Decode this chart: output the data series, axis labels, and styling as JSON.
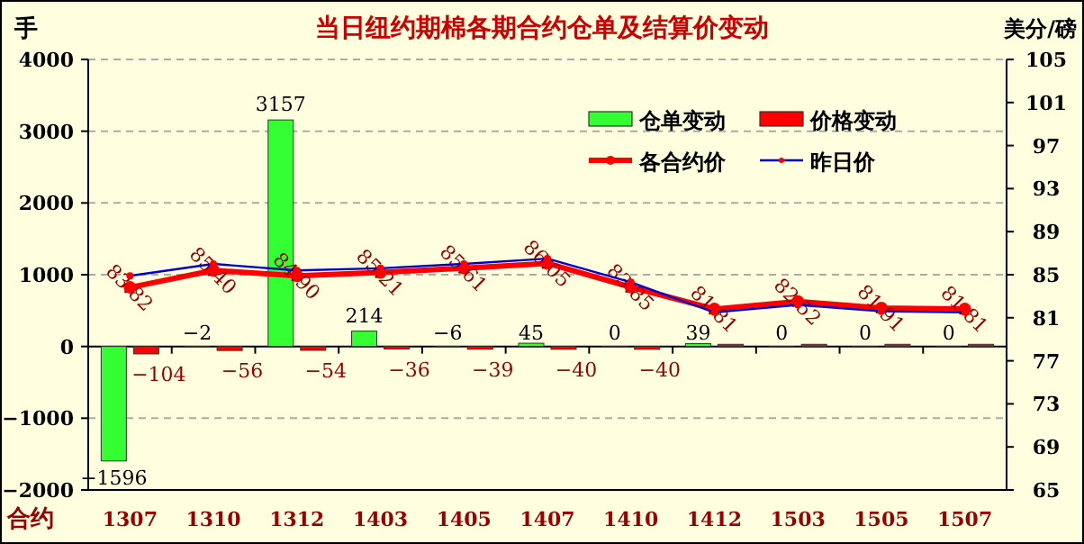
{
  "chart_data": {
    "type": "bar",
    "title": "当日纽约期棉各期合约仓单及结算价变动",
    "xlabel": "合约",
    "ylabel": "手",
    "y2label": "美分/磅",
    "categories": [
      "1307",
      "1310",
      "1312",
      "1403",
      "1405",
      "1407",
      "1410",
      "1412",
      "1503",
      "1505",
      "1507"
    ],
    "series": [
      {
        "name": "仓单变动",
        "color": "#33ff33",
        "values": [
          -1596,
          -2,
          3157,
          214,
          -6,
          45,
          0,
          39,
          0,
          0,
          0
        ],
        "value_labels": [
          "−1596",
          "−2",
          "3157",
          "214",
          "−6",
          "45",
          "0",
          "39",
          "0",
          "0",
          "0"
        ]
      },
      {
        "name": "价格变动",
        "color": "#ff0000",
        "values": [
          -104,
          -56,
          -54,
          -36,
          -39,
          -40,
          -40,
          30,
          30,
          30,
          30
        ],
        "value_labels": [
          "−104",
          "−56",
          "−54",
          "−36",
          "−39",
          "−40",
          "−40",
          null,
          null,
          null,
          null
        ]
      },
      {
        "name": "各合约价",
        "type": "line",
        "axis": "y2",
        "color": "#ff0000",
        "values": [
          83.82,
          85.4,
          84.9,
          85.21,
          85.61,
          86.05,
          83.85,
          81.81,
          82.52,
          81.91,
          81.81
        ],
        "value_labels": [
          "83.82",
          "85.40",
          "84.90",
          "85.21",
          "85.61",
          "86.05",
          "83.85",
          "81.81",
          "82.52",
          "81.91",
          "81.81"
        ]
      },
      {
        "name": "昨日价",
        "type": "line",
        "axis": "y2",
        "color": "#0000cc",
        "values": [
          84.9,
          86.0,
          85.4,
          85.6,
          86.0,
          86.5,
          84.3,
          81.5,
          82.2,
          81.6,
          81.5
        ]
      }
    ],
    "ylim": [
      -2000,
      4000
    ],
    "yticks": [
      -2000,
      -1000,
      0,
      1000,
      2000,
      3000,
      4000
    ],
    "y2lim": [
      65,
      105
    ],
    "y2ticks": [
      65,
      69,
      73,
      77,
      81,
      85,
      89,
      93,
      97,
      101,
      105
    ],
    "grid": "y",
    "legend": "top right",
    "marker": "circle"
  }
}
